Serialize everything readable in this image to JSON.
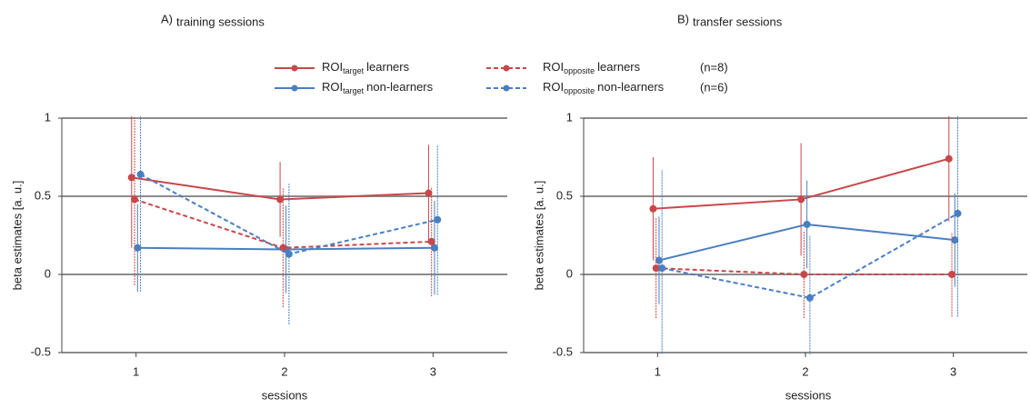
{
  "legend": {
    "items": [
      {
        "base": "ROI",
        "sub": "target",
        "text": "learners",
        "color": "#c9474a",
        "dashed": false
      },
      {
        "base": "ROI",
        "sub": "target",
        "text": "non-learners",
        "color": "#4a7fc1",
        "dashed": false
      },
      {
        "base": "ROI",
        "sub": "opposite",
        "text": "learners",
        "color": "#c9474a",
        "dashed": true,
        "note": "(n=8)"
      },
      {
        "base": "ROI",
        "sub": "opposite",
        "text": "non-learners",
        "color": "#4a7fc1",
        "dashed": true,
        "note": "(n=6)"
      }
    ]
  },
  "chart_data": [
    {
      "type": "line",
      "panel": "A)",
      "title": "training sessions",
      "xlabel": "sessions",
      "ylabel": "beta estimates [a. u.]",
      "x": [
        1,
        2,
        3
      ],
      "xlim": [
        0.5,
        3.5
      ],
      "xticks": [
        1,
        2,
        3
      ],
      "ylim": [
        -0.5,
        1
      ],
      "yticks": [
        -0.5,
        0,
        0.5,
        1
      ],
      "grid": true,
      "series": [
        {
          "color": "#c9474a",
          "dashed": false,
          "values": [
            0.62,
            0.48,
            0.52
          ],
          "errors": [
            0.45,
            0.24,
            0.31
          ]
        },
        {
          "color": "#4a7fc1",
          "dashed": false,
          "values": [
            0.17,
            0.16,
            0.17
          ],
          "errors": [
            0.28,
            0.28,
            0.3
          ]
        },
        {
          "color": "#c9474a",
          "dashed": true,
          "values": [
            0.48,
            0.17,
            0.21
          ],
          "errors": [
            0.55,
            0.38,
            0.35
          ]
        },
        {
          "color": "#4a7fc1",
          "dashed": true,
          "values": [
            0.64,
            0.13,
            0.35
          ],
          "errors": [
            0.75,
            0.45,
            0.48
          ]
        }
      ]
    },
    {
      "type": "line",
      "panel": "B)",
      "title": "transfer sessions",
      "xlabel": "sessions",
      "ylabel": "beta estimates [a. u.]",
      "x": [
        1,
        2,
        3
      ],
      "xlim": [
        0.5,
        3.5
      ],
      "xticks": [
        1,
        2,
        3
      ],
      "ylim": [
        -0.5,
        1
      ],
      "yticks": [
        -0.5,
        0,
        0.5,
        1
      ],
      "grid": true,
      "series": [
        {
          "color": "#c9474a",
          "dashed": false,
          "values": [
            0.42,
            0.48,
            0.74
          ],
          "errors": [
            0.33,
            0.36,
            0.4
          ]
        },
        {
          "color": "#4a7fc1",
          "dashed": false,
          "values": [
            0.09,
            0.32,
            0.22
          ],
          "errors": [
            0.28,
            0.28,
            0.3
          ]
        },
        {
          "color": "#c9474a",
          "dashed": true,
          "values": [
            0.04,
            0.0,
            0.0
          ],
          "errors": [
            0.32,
            0.28,
            0.27
          ]
        },
        {
          "color": "#4a7fc1",
          "dashed": true,
          "values": [
            0.04,
            -0.15,
            0.39
          ],
          "errors": [
            0.63,
            0.4,
            0.66
          ]
        }
      ]
    }
  ]
}
